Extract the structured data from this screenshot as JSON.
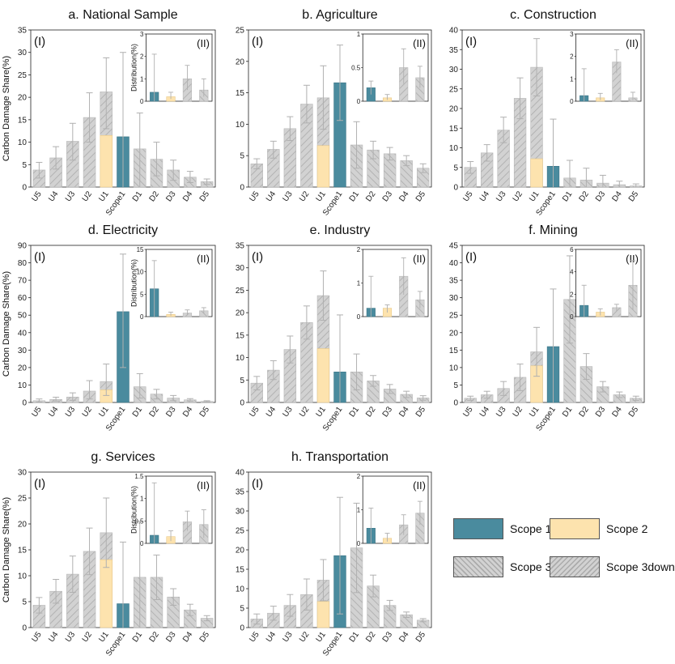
{
  "colors": {
    "scope1": "#4a8b9e",
    "scope2": "#fde3ae",
    "scope3up": "#d2d2d2",
    "scope3down": "#d2d2d2",
    "error_bar": "#b0b0b0"
  },
  "legend": {
    "scope1": "Scope 1",
    "scope2": "Scope 2",
    "scope3up": "Scope 3up",
    "scope3down": "Scope 3down"
  },
  "chart_data": [
    {
      "type": "bar",
      "title": "a. National Sample",
      "ylabel": "Carbon Damage  Share(%)",
      "panel_label": "(I)",
      "categories": [
        "U5",
        "U4",
        "U3",
        "U2",
        "U1",
        "Scope1",
        "D1",
        "D2",
        "D3",
        "D4",
        "D5"
      ],
      "ylim": [
        0,
        35
      ],
      "yticks": [
        0,
        5,
        10,
        15,
        20,
        25,
        30,
        35
      ],
      "values": [
        3.8,
        6.5,
        10.2,
        15.5,
        21.2,
        11.2,
        8.5,
        6.2,
        3.8,
        2.2,
        1.2
      ],
      "scope2_values": [
        0,
        0,
        0,
        0,
        11.5,
        0,
        0,
        0,
        0,
        0,
        0
      ],
      "error_high": [
        5.5,
        9.0,
        14.2,
        21.0,
        28.8,
        30.0,
        16.5,
        10.0,
        6.0,
        3.5,
        1.8
      ],
      "error_low": [
        2.0,
        4.0,
        6.0,
        10.0,
        13.0,
        0,
        0,
        2.5,
        1.5,
        1.0,
        0.6
      ],
      "inset": {
        "label": "(II)",
        "ylabel": "Distribution(%)",
        "ylim": [
          0,
          3
        ],
        "yticks": [
          0,
          1,
          2,
          3
        ],
        "values": [
          0.4,
          0.2,
          1.0,
          0.5
        ],
        "error_high": [
          2.1,
          0.4,
          1.6,
          1.0
        ],
        "error_low": [
          0,
          0.1,
          0.5,
          0.2
        ]
      }
    },
    {
      "type": "bar",
      "title": "b. Agriculture",
      "ylabel": "",
      "panel_label": "(I)",
      "categories": [
        "U5",
        "U4",
        "U3",
        "U2",
        "U1",
        "Scope1",
        "D1",
        "D2",
        "D3",
        "D4",
        "D5"
      ],
      "ylim": [
        0,
        25
      ],
      "yticks": [
        0,
        5,
        10,
        15,
        20,
        25
      ],
      "values": [
        3.7,
        6.0,
        9.3,
        13.2,
        14.2,
        16.6,
        6.7,
        5.9,
        5.3,
        4.2,
        3.0
      ],
      "scope2_values": [
        0,
        0,
        0,
        0,
        6.6,
        0,
        0,
        0,
        0,
        0,
        0
      ],
      "error_high": [
        4.5,
        7.3,
        11.2,
        16.2,
        19.3,
        22.6,
        10.4,
        7.3,
        6.3,
        5.0,
        3.7
      ],
      "error_low": [
        2.9,
        4.6,
        7.4,
        10.2,
        9.2,
        10.6,
        3.0,
        4.5,
        4.3,
        3.4,
        2.3
      ],
      "inset": {
        "label": "(II)",
        "ylabel": "",
        "ylim": [
          0,
          1
        ],
        "yticks": [
          0,
          0.5,
          1
        ],
        "values": [
          0.2,
          0.05,
          0.5,
          0.35
        ],
        "error_high": [
          0.3,
          0.1,
          0.78,
          0.52
        ],
        "error_low": [
          0.1,
          0.02,
          0.26,
          0.2
        ]
      }
    },
    {
      "type": "bar",
      "title": "c. Construction",
      "ylabel": "",
      "panel_label": "(I)",
      "categories": [
        "U5",
        "U4",
        "U3",
        "U2",
        "U1",
        "Scope1",
        "D1",
        "D2",
        "D3",
        "D4",
        "D5"
      ],
      "ylim": [
        0,
        40
      ],
      "yticks": [
        0,
        5,
        10,
        15,
        20,
        25,
        30,
        35,
        40
      ],
      "values": [
        5.0,
        8.7,
        14.5,
        22.6,
        30.5,
        5.3,
        2.3,
        1.8,
        1.0,
        0.6,
        0.3
      ],
      "scope2_values": [
        0,
        0,
        0,
        0,
        7.2,
        0,
        0,
        0,
        0,
        0,
        0
      ],
      "error_high": [
        6.5,
        10.8,
        17.8,
        27.8,
        37.8,
        17.3,
        6.8,
        4.8,
        3.0,
        1.5,
        0.8
      ],
      "error_low": [
        3.5,
        6.6,
        11.3,
        17.4,
        23.2,
        0,
        0,
        0,
        0,
        0,
        0
      ],
      "inset": {
        "label": "(II)",
        "ylabel": "",
        "ylim": [
          0,
          3
        ],
        "yticks": [
          0,
          1,
          2,
          3
        ],
        "values": [
          0.25,
          0.15,
          1.75,
          0.15
        ],
        "error_high": [
          1.45,
          0.35,
          2.3,
          0.4
        ],
        "error_low": [
          0,
          0.05,
          1.25,
          0.05
        ]
      }
    },
    {
      "type": "bar",
      "title": "d. Electricity",
      "ylabel": "Carbon Damage  Share(%)",
      "panel_label": "(I)",
      "categories": [
        "U5",
        "U4",
        "U3",
        "U2",
        "U1",
        "Scope1",
        "D1",
        "D2",
        "D3",
        "D4",
        "D5"
      ],
      "ylim": [
        0,
        90
      ],
      "yticks": [
        0,
        10,
        20,
        30,
        40,
        50,
        60,
        70,
        80,
        90
      ],
      "values": [
        1.0,
        1.7,
        3.1,
        6.5,
        12.0,
        52.0,
        9.0,
        4.8,
        2.5,
        1.5,
        0.6
      ],
      "scope2_values": [
        0,
        0,
        0,
        0,
        7.2,
        0,
        0,
        0,
        0,
        0,
        0
      ],
      "error_high": [
        2.0,
        3.0,
        5.5,
        12.5,
        22.0,
        85.0,
        16.5,
        7.5,
        4.0,
        2.2,
        1.0
      ],
      "error_low": [
        0.3,
        0.8,
        1.2,
        2.0,
        4.0,
        20.0,
        2.5,
        2.0,
        1.0,
        0.8,
        0.2
      ],
      "inset": {
        "label": "(II)",
        "ylabel": "Distribution(%)",
        "ylim": [
          0,
          15
        ],
        "yticks": [
          0,
          5,
          10,
          15
        ],
        "values": [
          6.2,
          0.5,
          0.8,
          1.3
        ],
        "error_high": [
          12.5,
          1.0,
          1.5,
          2.0
        ],
        "error_low": [
          0,
          0.2,
          0.3,
          0.7
        ]
      }
    },
    {
      "type": "bar",
      "title": "e. Industry",
      "ylabel": "",
      "panel_label": "(I)",
      "categories": [
        "U5",
        "U4",
        "U3",
        "U2",
        "U1",
        "Scope1",
        "D1",
        "D2",
        "D3",
        "D4",
        "D5"
      ],
      "ylim": [
        0,
        35
      ],
      "yticks": [
        0,
        5,
        10,
        15,
        20,
        25,
        30,
        35
      ],
      "values": [
        4.3,
        7.2,
        11.8,
        17.8,
        23.8,
        6.8,
        6.8,
        4.8,
        3.0,
        1.8,
        1.0
      ],
      "scope2_values": [
        0,
        0,
        0,
        0,
        12.0,
        0,
        0,
        0,
        0,
        0,
        0
      ],
      "error_high": [
        5.8,
        9.3,
        14.8,
        21.5,
        29.3,
        19.5,
        10.8,
        6.0,
        4.0,
        2.5,
        1.5
      ],
      "error_low": [
        2.8,
        5.1,
        8.8,
        14.1,
        18.3,
        0,
        2.8,
        3.6,
        2.0,
        1.1,
        0.5
      ],
      "inset": {
        "label": "(II)",
        "ylabel": "",
        "ylim": [
          0,
          2
        ],
        "yticks": [
          0,
          1,
          2
        ],
        "values": [
          0.25,
          0.25,
          1.2,
          0.5
        ],
        "error_high": [
          1.2,
          0.35,
          1.75,
          0.75
        ],
        "error_low": [
          0,
          0.12,
          0.65,
          0.25
        ]
      }
    },
    {
      "type": "bar",
      "title": "f. Mining",
      "ylabel": "",
      "panel_label": "(I)",
      "categories": [
        "U5",
        "U4",
        "U3",
        "U2",
        "U1",
        "Scope1",
        "D1",
        "D2",
        "D3",
        "D4",
        "D5"
      ],
      "ylim": [
        0,
        45
      ],
      "yticks": [
        0,
        5,
        10,
        15,
        20,
        25,
        30,
        35,
        40,
        45
      ],
      "values": [
        1.2,
        2.2,
        4.0,
        7.2,
        14.5,
        16.0,
        29.5,
        10.3,
        4.5,
        2.2,
        1.2
      ],
      "scope2_values": [
        0,
        0,
        0,
        0,
        10.5,
        0,
        0,
        0,
        0,
        0,
        0
      ],
      "error_high": [
        1.8,
        3.2,
        6.0,
        11.0,
        21.5,
        32.5,
        42.0,
        14.0,
        6.0,
        3.0,
        1.8
      ],
      "error_low": [
        0.6,
        1.2,
        2.0,
        3.4,
        7.5,
        0,
        17.0,
        6.6,
        3.0,
        1.4,
        0.6
      ],
      "inset": {
        "label": "(II)",
        "ylabel": "",
        "ylim": [
          0,
          6
        ],
        "yticks": [
          0,
          2,
          4,
          6
        ],
        "values": [
          1.0,
          0.4,
          0.8,
          2.8
        ],
        "error_high": [
          2.8,
          0.7,
          1.1,
          5.0
        ],
        "error_low": [
          0,
          0.1,
          0.5,
          0.6
        ]
      }
    },
    {
      "type": "bar",
      "title": "g. Services",
      "ylabel": "Carbon Damage  Share(%)",
      "panel_label": "(I)",
      "categories": [
        "U5",
        "U4",
        "U3",
        "U2",
        "U1",
        "Scope1",
        "D1",
        "D2",
        "D3",
        "D4",
        "D5"
      ],
      "ylim": [
        0,
        30
      ],
      "yticks": [
        0,
        5,
        10,
        15,
        20,
        25,
        30
      ],
      "values": [
        4.3,
        7.0,
        10.3,
        14.7,
        18.3,
        4.6,
        9.7,
        9.7,
        5.9,
        3.4,
        1.8
      ],
      "scope2_values": [
        0,
        0,
        0,
        0,
        13.1,
        0,
        0,
        0,
        0,
        0,
        0
      ],
      "error_high": [
        5.8,
        9.3,
        13.8,
        19.2,
        25.0,
        16.5,
        20.5,
        14.0,
        7.5,
        4.5,
        2.3
      ],
      "error_low": [
        2.8,
        4.7,
        6.8,
        10.2,
        11.6,
        0,
        0,
        5.4,
        4.3,
        2.3,
        1.3
      ],
      "inset": {
        "label": "(II)",
        "ylabel": "Distribution(%)",
        "ylim": [
          0,
          1.5
        ],
        "yticks": [
          0,
          0.5,
          1,
          1.5
        ],
        "values": [
          0.18,
          0.15,
          0.48,
          0.42
        ],
        "error_high": [
          1.35,
          0.28,
          0.72,
          0.75
        ],
        "error_low": [
          0,
          0.05,
          0.28,
          0.12
        ]
      }
    },
    {
      "type": "bar",
      "title": "h. Transportation",
      "ylabel": "",
      "panel_label": "(I)",
      "categories": [
        "U5",
        "U4",
        "U3",
        "U2",
        "U1",
        "Scope1",
        "D1",
        "D2",
        "D3",
        "D4",
        "D5"
      ],
      "ylim": [
        0,
        40
      ],
      "yticks": [
        0,
        5,
        10,
        15,
        20,
        25,
        30,
        35,
        40
      ],
      "values": [
        2.2,
        3.7,
        5.7,
        8.5,
        12.2,
        18.5,
        20.5,
        10.7,
        5.7,
        3.3,
        1.9
      ],
      "scope2_values": [
        0,
        0,
        0,
        0,
        6.7,
        0,
        0,
        0,
        0,
        0,
        0
      ],
      "error_high": [
        3.5,
        5.5,
        8.5,
        12.5,
        17.5,
        33.5,
        32.0,
        13.5,
        7.0,
        4.0,
        2.3
      ],
      "error_low": [
        0.9,
        1.9,
        2.9,
        4.5,
        6.9,
        3.5,
        9.0,
        7.9,
        4.4,
        2.6,
        1.5
      ],
      "inset": {
        "label": "(II)",
        "ylabel": "",
        "ylim": [
          0,
          2
        ],
        "yticks": [
          0,
          1,
          2
        ],
        "values": [
          0.45,
          0.15,
          0.55,
          0.9
        ],
        "error_high": [
          1.05,
          0.3,
          0.85,
          1.25
        ],
        "error_low": [
          0,
          0.05,
          0.25,
          0.55
        ]
      }
    }
  ]
}
